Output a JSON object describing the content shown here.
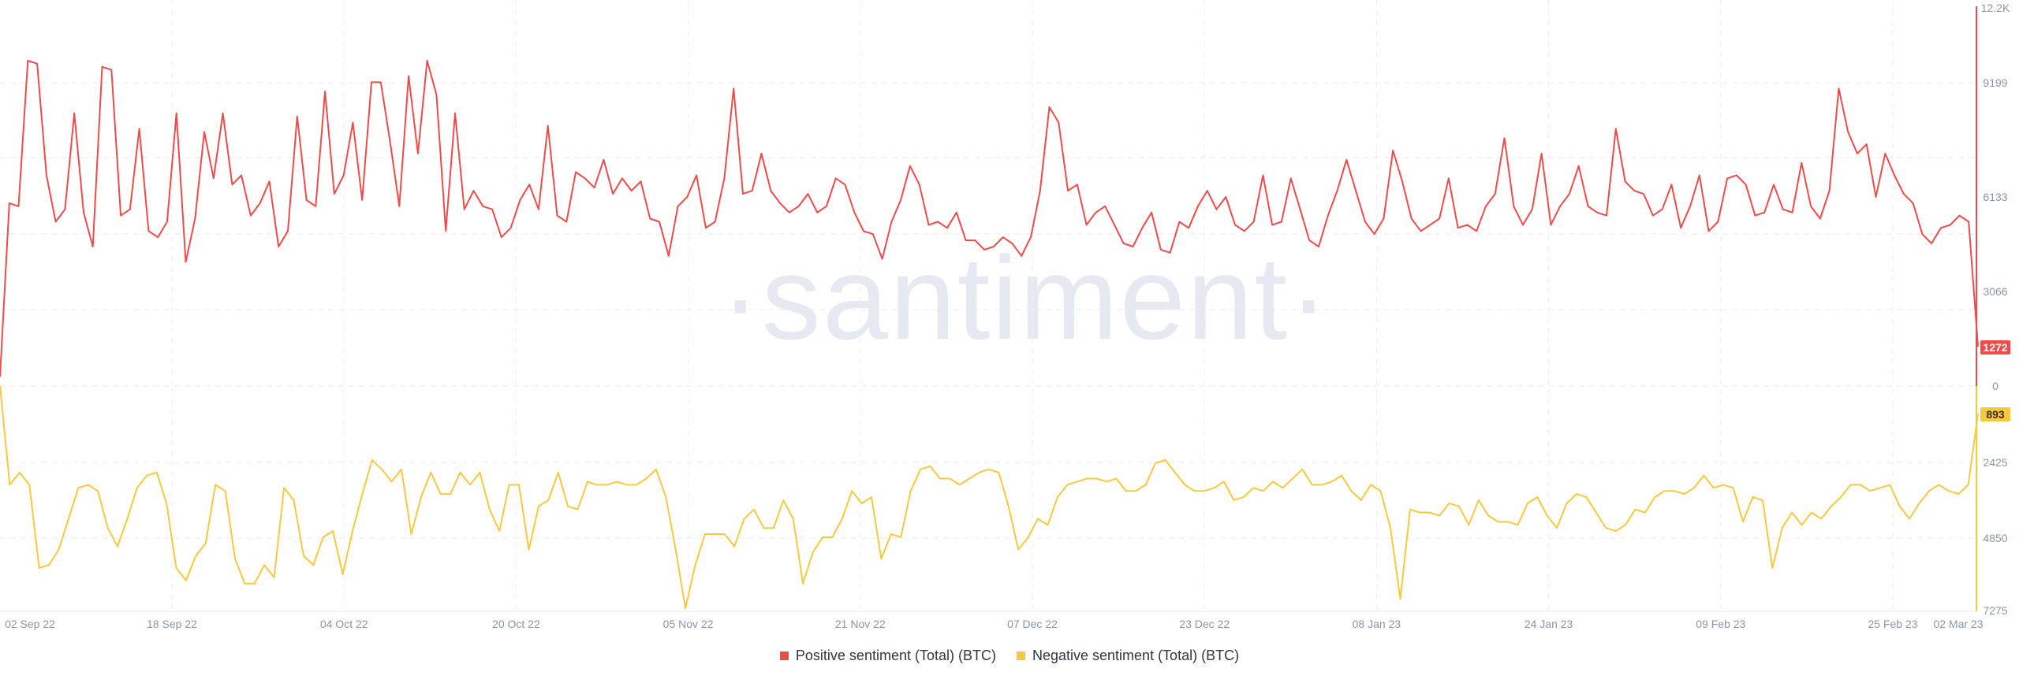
{
  "watermark": "·santiment·",
  "colors": {
    "positive": "#f04b4b",
    "negative": "#f7c93e",
    "grid": "#e4e7ee",
    "tick": "#8a95a8"
  },
  "chart_data": [
    {
      "type": "line",
      "title": "",
      "xlabel": "",
      "ylabel": "",
      "grid": true,
      "legend_placement": "bottom-center",
      "x_tick_labels": [
        "02 Sep 22",
        "18 Sep 22",
        "04 Oct 22",
        "20 Oct 22",
        "05 Nov 22",
        "21 Nov 22",
        "07 Dec 22",
        "23 Dec 22",
        "08 Jan 23",
        "24 Jan 23",
        "09 Feb 23",
        "25 Feb 23",
        "02 Mar 23"
      ],
      "series": [
        {
          "name": "Positive sentiment (Total) (BTC)",
          "color": "#f04b4b",
          "y_ticks": [
            "12.2K",
            "9199",
            "6133",
            "3066",
            "0"
          ],
          "ylim": [
            0,
            12200
          ],
          "current_value": "1272",
          "values": [
            300,
            5900,
            5800,
            10500,
            10400,
            6800,
            5300,
            5700,
            8800,
            5600,
            4500,
            10300,
            10200,
            5500,
            5700,
            8300,
            5000,
            4800,
            5300,
            8800,
            4000,
            5400,
            8200,
            6700,
            8800,
            6500,
            6800,
            5500,
            5900,
            6600,
            4500,
            5000,
            8700,
            6000,
            5800,
            9500,
            6200,
            6800,
            8500,
            6000,
            9800,
            9800,
            7900,
            5800,
            10000,
            7500,
            10500,
            9400,
            5000,
            8800,
            5700,
            6300,
            5800,
            5700,
            4800,
            5100,
            6000,
            6500,
            5700,
            8400,
            5500,
            5300,
            6900,
            6700,
            6400,
            7300,
            6200,
            6700,
            6300,
            6600,
            5400,
            5300,
            4200,
            5800,
            6100,
            6800,
            5100,
            5300,
            6700,
            9600,
            6200,
            6300,
            7500,
            6300,
            5900,
            5600,
            5800,
            6200,
            5600,
            5800,
            6700,
            6500,
            5600,
            5000,
            4900,
            4100,
            5300,
            6000,
            7100,
            6500,
            5200,
            5300,
            5100,
            5600,
            4700,
            4700,
            4400,
            4500,
            4800,
            4600,
            4200,
            4800,
            6300,
            9000,
            8500,
            6300,
            6500,
            5200,
            5600,
            5800,
            5200,
            4600,
            4500,
            5100,
            5600,
            4400,
            4300,
            5300,
            5100,
            5800,
            6300,
            5700,
            6100,
            5200,
            5000,
            5300,
            6800,
            5200,
            5300,
            6700,
            5700,
            4700,
            4500,
            5500,
            6300,
            7300,
            6300,
            5300,
            4900,
            5400,
            7600,
            6600,
            5400,
            5000,
            5200,
            5400,
            6700,
            5100,
            5200,
            5000,
            5800,
            6200,
            8000,
            5800,
            5200,
            5700,
            7500,
            5200,
            5800,
            6200,
            7100,
            5800,
            5600,
            5500,
            8300,
            6600,
            6300,
            6200,
            5500,
            5700,
            6500,
            5100,
            5800,
            6800,
            5000,
            5300,
            6700,
            6800,
            6500,
            5500,
            5600,
            6500,
            5700,
            5600,
            7200,
            5800,
            5400,
            6300,
            9600,
            8200,
            7500,
            7800,
            6100,
            7500,
            6800,
            6200,
            5900,
            4900,
            4600,
            5100,
            5200,
            5500,
            5300,
            1272
          ]
        },
        {
          "name": "Negative sentiment (Total) (BTC)",
          "color": "#f7c93e",
          "y_ticks": [
            "2425",
            "4850",
            "7275"
          ],
          "ylim": [
            0,
            7275
          ],
          "current_value": "893",
          "values": [
            0,
            3200,
            2800,
            3200,
            5900,
            5800,
            5300,
            4300,
            3300,
            3200,
            3400,
            4600,
            5200,
            4300,
            3300,
            2900,
            2800,
            3800,
            5900,
            6300,
            5500,
            5100,
            3200,
            3400,
            5600,
            6400,
            6400,
            5800,
            6200,
            3300,
            3700,
            5500,
            5800,
            4900,
            4700,
            6100,
            4700,
            3500,
            2400,
            2700,
            3100,
            2700,
            4800,
            3600,
            2800,
            3500,
            3500,
            2800,
            3200,
            2800,
            4000,
            4700,
            3200,
            3200,
            5300,
            3900,
            3700,
            2800,
            3900,
            4000,
            3100,
            3200,
            3200,
            3100,
            3200,
            3200,
            3000,
            2700,
            3600,
            5300,
            7200,
            5800,
            4800,
            4800,
            4800,
            5200,
            4300,
            4000,
            4600,
            4600,
            3700,
            4300,
            6400,
            5400,
            4900,
            4900,
            4300,
            3400,
            3800,
            3600,
            5600,
            4800,
            4900,
            3400,
            2700,
            2600,
            3000,
            3000,
            3200,
            3000,
            2800,
            2700,
            2800,
            3900,
            5300,
            4900,
            4300,
            4500,
            3600,
            3200,
            3100,
            3000,
            3000,
            3100,
            3000,
            3400,
            3400,
            3200,
            2500,
            2400,
            2800,
            3200,
            3400,
            3400,
            3300,
            3100,
            3700,
            3600,
            3300,
            3400,
            3100,
            3300,
            3000,
            2700,
            3200,
            3200,
            3100,
            2900,
            3400,
            3700,
            3200,
            3400,
            4600,
            6900,
            4000,
            4100,
            4100,
            4200,
            3800,
            3900,
            4500,
            3700,
            4200,
            4400,
            4400,
            4500,
            3800,
            3600,
            4200,
            4600,
            3800,
            3500,
            3600,
            4100,
            4600,
            4700,
            4500,
            4000,
            4100,
            3600,
            3400,
            3400,
            3500,
            3300,
            2900,
            3300,
            3200,
            3300,
            4400,
            3600,
            3700,
            5900,
            4600,
            4100,
            4500,
            4100,
            4300,
            3900,
            3600,
            3200,
            3200,
            3400,
            3300,
            3200,
            3900,
            4300,
            3800,
            3400,
            3200,
            3400,
            3500,
            3200,
            900
          ]
        }
      ]
    }
  ],
  "legend": {
    "positive_label": "Positive sentiment (Total) (BTC)",
    "negative_label": "Negative sentiment (Total) (BTC)"
  }
}
